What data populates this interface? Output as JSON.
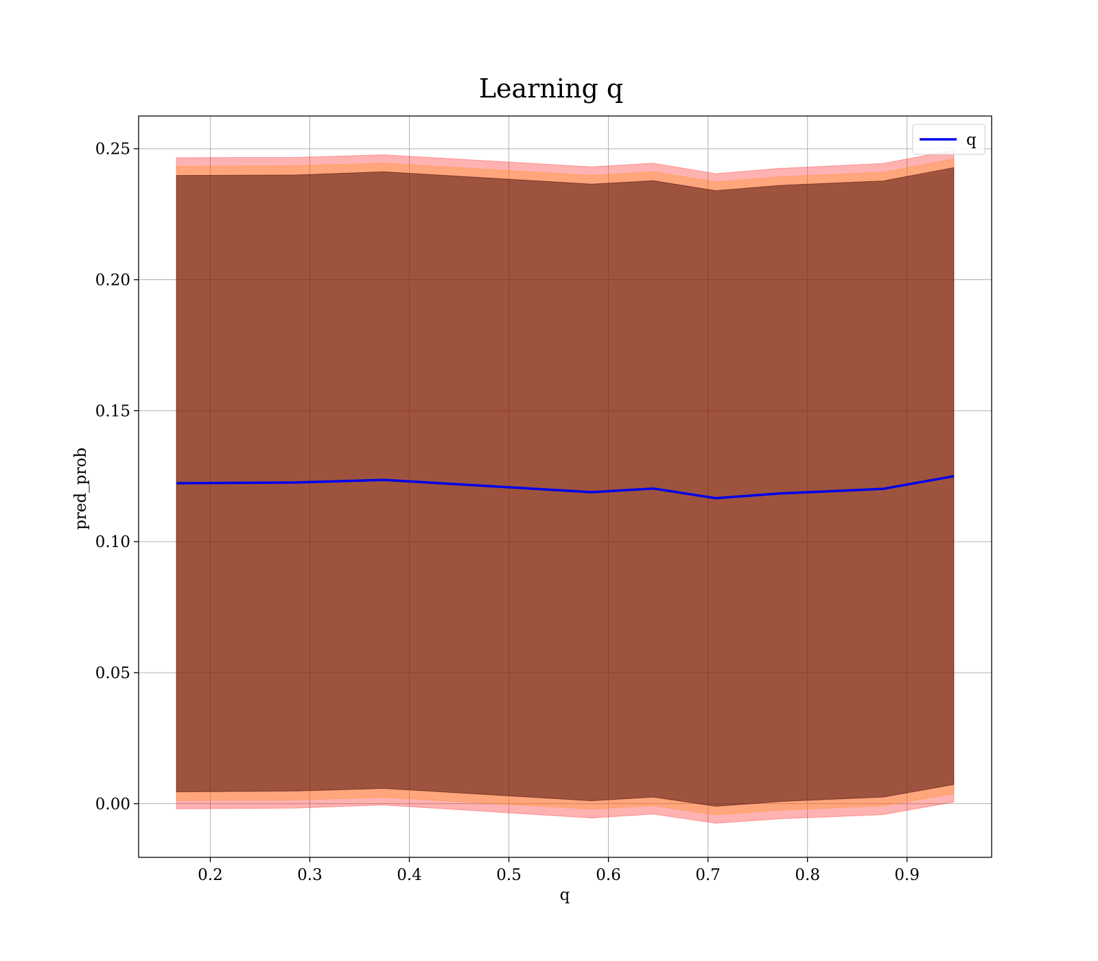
{
  "chart_data": {
    "type": "line",
    "title": "Learning q",
    "xlabel": "q",
    "ylabel": "pred_prob",
    "xlim": [
      0.128,
      0.985
    ],
    "ylim": [
      -0.0205,
      0.2625
    ],
    "grid": true,
    "legend_position": "top-right",
    "x_ticks": [
      0.2,
      0.3,
      0.4,
      0.5,
      0.6,
      0.7,
      0.8,
      0.9
    ],
    "x_tick_labels": [
      "0.2",
      "0.3",
      "0.4",
      "0.5",
      "0.6",
      "0.7",
      "0.8",
      "0.9"
    ],
    "y_ticks": [
      0.0,
      0.05,
      0.1,
      0.15,
      0.2,
      0.25
    ],
    "y_tick_labels": [
      "0.00",
      "0.05",
      "0.10",
      "0.15",
      "0.20",
      "0.25"
    ],
    "x": [
      0.166,
      0.286,
      0.374,
      0.583,
      0.645,
      0.708,
      0.772,
      0.876,
      0.947
    ],
    "series": [
      {
        "name": "q",
        "color": "#0000ee",
        "values": [
          0.1223,
          0.1226,
          0.1236,
          0.1189,
          0.1203,
          0.1166,
          0.1184,
          0.1202,
          0.125
        ]
      }
    ],
    "bands": [
      {
        "color": "#ff0000",
        "opacity": 0.3,
        "lower": [
          -0.002,
          -0.0017,
          -0.0005,
          -0.0055,
          -0.004,
          -0.0075,
          -0.0058,
          -0.0042,
          0.0006
        ],
        "upper": [
          0.2466,
          0.2467,
          0.2477,
          0.2431,
          0.2445,
          0.2405,
          0.2425,
          0.2444,
          0.2495
        ]
      },
      {
        "color": "#ff8c00",
        "opacity": 0.3,
        "lower": [
          0.0012,
          0.0014,
          0.0024,
          -0.0021,
          -0.0008,
          -0.0043,
          -0.0025,
          -0.0008,
          0.0038
        ],
        "upper": [
          0.2433,
          0.2435,
          0.2445,
          0.2398,
          0.2412,
          0.2373,
          0.2393,
          0.241,
          0.2461
        ]
      },
      {
        "color": "#3d0000",
        "opacity": 0.5,
        "lower": [
          0.0045,
          0.0048,
          0.0058,
          0.0011,
          0.0025,
          -0.001,
          0.0008,
          0.0025,
          0.0073
        ],
        "upper": [
          0.2398,
          0.24,
          0.2412,
          0.2365,
          0.2378,
          0.234,
          0.236,
          0.2377,
          0.2428
        ]
      }
    ]
  }
}
